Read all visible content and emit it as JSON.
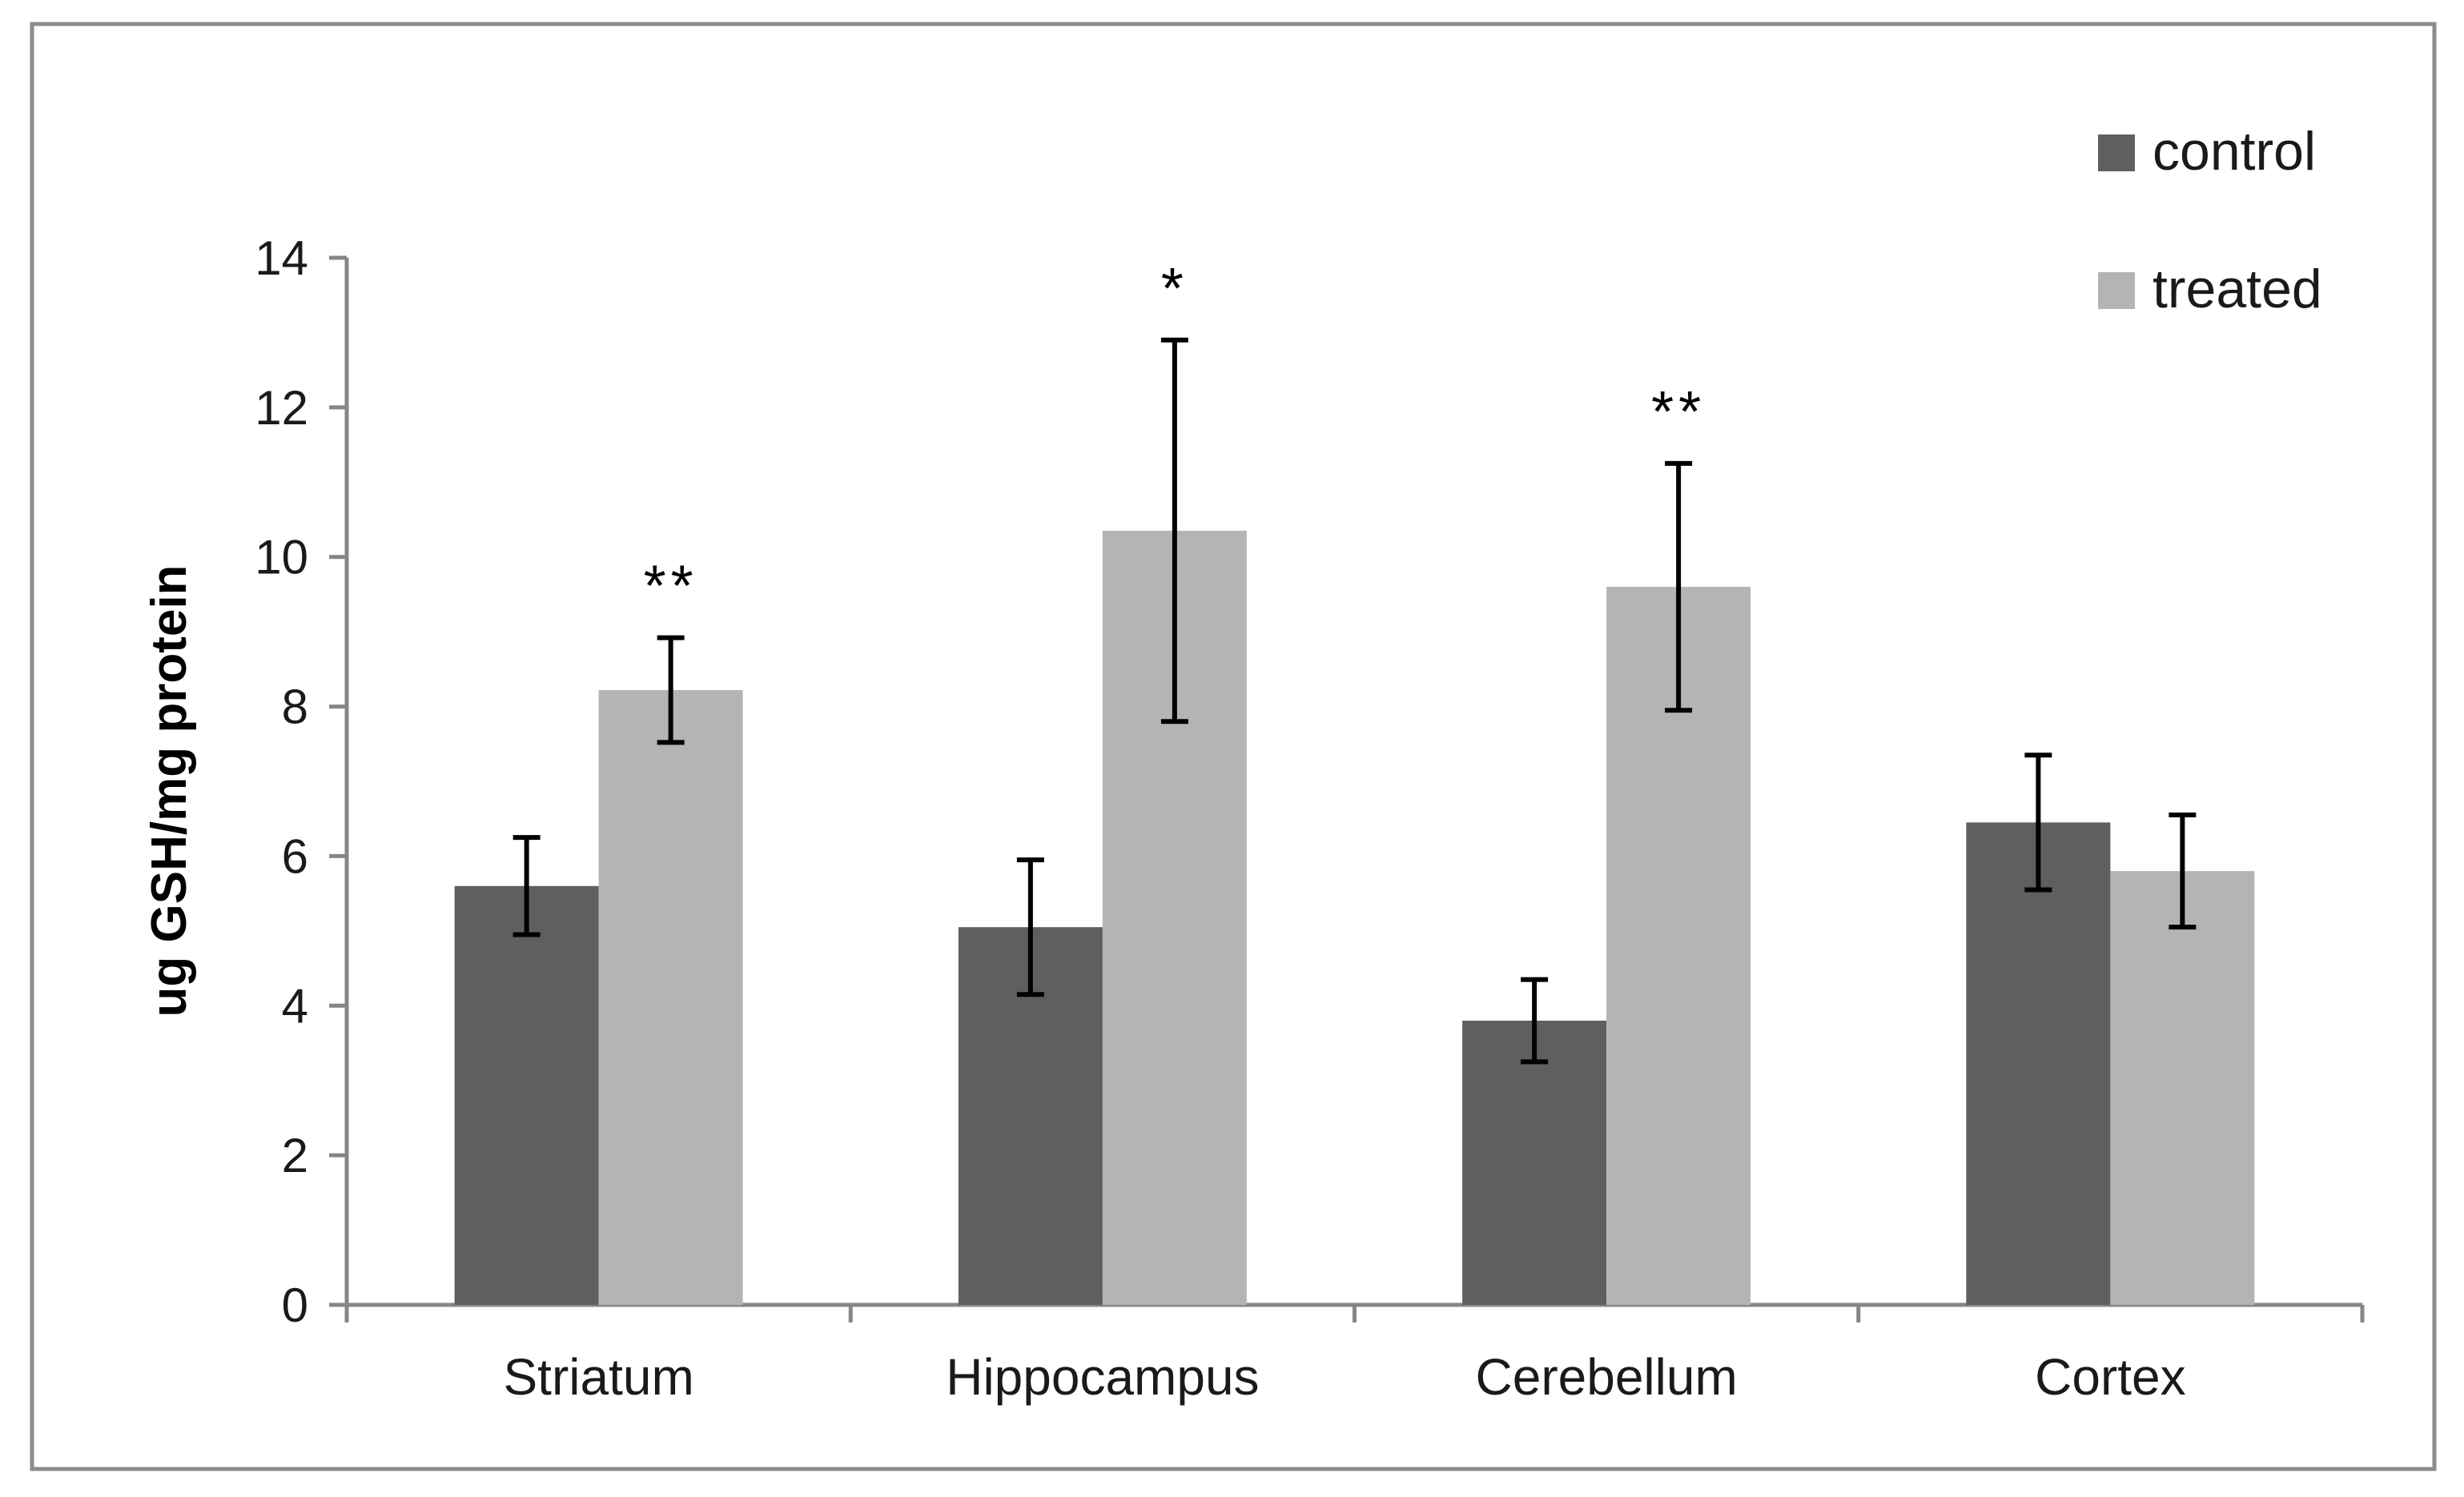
{
  "chart_data": {
    "type": "bar",
    "title": "",
    "xlabel": "",
    "ylabel": "ug GSH/mg protein",
    "ylim": [
      0,
      14
    ],
    "yticks": [
      "0",
      "2",
      "4",
      "6",
      "8",
      "10",
      "12",
      "14"
    ],
    "grid": false,
    "legend_position": "top-right",
    "categories": [
      "Striatum",
      "Hippocampus",
      "Cerebellum",
      "Cortex"
    ],
    "series": [
      {
        "name": "control",
        "color": "#5f5f5f",
        "values": [
          5.6,
          5.05,
          3.8,
          6.45
        ],
        "errors": [
          0.65,
          0.9,
          0.55,
          0.9
        ]
      },
      {
        "name": "treated",
        "color": "#b4b4b4",
        "values": [
          8.22,
          10.35,
          9.6,
          5.8
        ],
        "errors": [
          0.7,
          2.55,
          1.65,
          0.75
        ]
      }
    ],
    "significance": [
      "**",
      "*",
      "**",
      ""
    ]
  }
}
